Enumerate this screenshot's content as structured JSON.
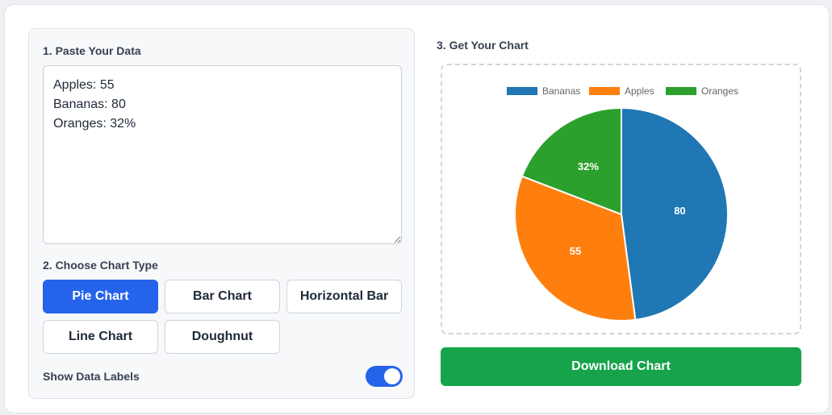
{
  "step1": {
    "label": "1. Paste Your Data",
    "data_text": "Apples: 55\nBananas: 80\nOranges: 32%"
  },
  "step2": {
    "label": "2. Choose Chart Type",
    "buttons": [
      "Pie Chart",
      "Bar Chart",
      "Horizontal Bar",
      "Line Chart",
      "Doughnut"
    ],
    "selected": "Pie Chart"
  },
  "labels_toggle": {
    "label": "Show Data Labels",
    "on": true
  },
  "step3": {
    "label": "3. Get Your Chart"
  },
  "download": {
    "label": "Download Chart"
  },
  "colors": {
    "accent": "#2563eb",
    "download": "#16a34a"
  },
  "chart_data": {
    "type": "pie",
    "categories": [
      "Bananas",
      "Apples",
      "Oranges"
    ],
    "values": [
      80,
      55,
      32
    ],
    "data_labels": [
      "80",
      "55",
      "32%"
    ],
    "colors": [
      "#1f77b4",
      "#ff7f0e",
      "#2ca02c"
    ],
    "legend_position": "top"
  }
}
